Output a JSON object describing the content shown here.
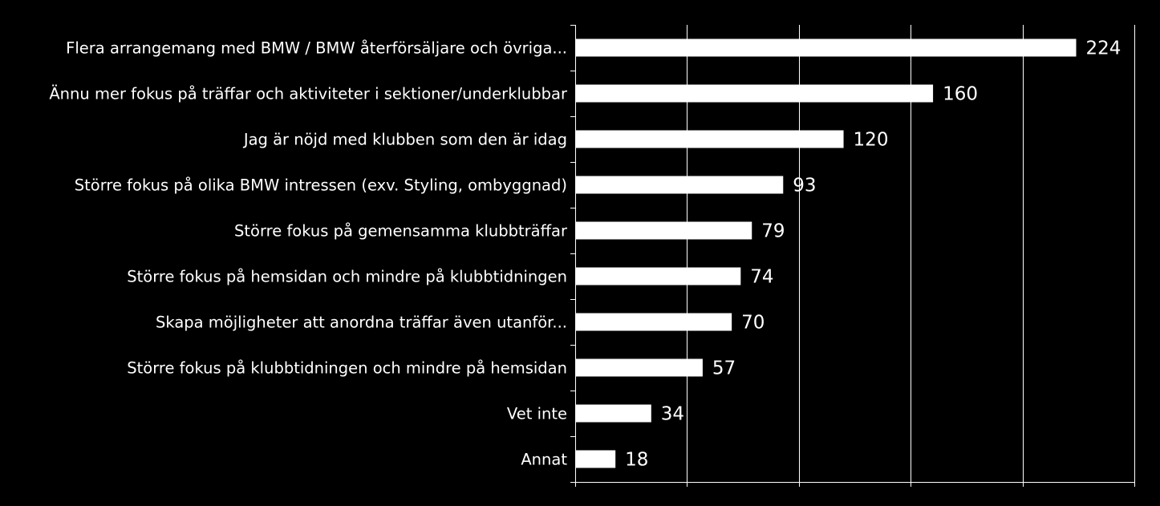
{
  "colors": {
    "background": "#000000",
    "bar": "#ffffff",
    "text": "#ffffff",
    "grid": "#ffffff"
  },
  "chart_data": {
    "type": "bar",
    "orientation": "horizontal",
    "title": "",
    "xlabel": "",
    "ylabel": "",
    "categories": [
      "Flera arrangemang med BMW / BMW återförsäljare och övriga...",
      "Ännu mer fokus på träffar och aktiviteter i sektioner/underklubbar",
      "Jag är nöjd med klubben som den är idag",
      "Större fokus på olika BMW intressen (exv. Styling, ombyggnad)",
      "Större fokus på gemensamma klubbträffar",
      "Större fokus på hemsidan och mindre på klubbtidningen",
      "Skapa möjligheter att anordna träffar även utanför...",
      "Större fokus på klubbtidningen och mindre på hemsidan",
      "Vet inte",
      "Annat"
    ],
    "values": [
      224,
      160,
      120,
      93,
      79,
      74,
      70,
      57,
      34,
      18
    ],
    "xlim": [
      0,
      250
    ],
    "grid": true,
    "legend": "none",
    "data_labels": true
  }
}
